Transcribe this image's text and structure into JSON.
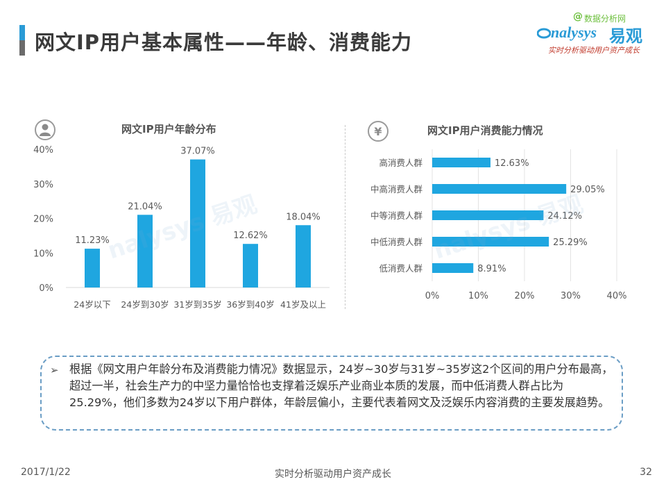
{
  "header": {
    "title": "网文IP用户基本属性——年龄、消费能力"
  },
  "logo": {
    "brand": "nalysys",
    "brand_cn": "易观",
    "slogan": "实时分析驱动用户资产成长",
    "corner_text": "数据分析网",
    "corner_at": "@"
  },
  "icons": {
    "age": "user-icon",
    "consumption": "yen-icon"
  },
  "colors": {
    "accent": "#2A9BD6",
    "bar": "#1FA6E0",
    "axis_text": "#595959"
  },
  "chart_data": [
    {
      "type": "bar",
      "title": "网文IP用户年龄分布",
      "categories": [
        "24岁以下",
        "24岁到30岁",
        "31岁到35岁",
        "36岁到40岁",
        "41岁及以上"
      ],
      "values": [
        11.23,
        21.04,
        37.07,
        12.62,
        18.04
      ],
      "value_labels": [
        "11.23%",
        "21.04%",
        "37.07%",
        "12.62%",
        "18.04%"
      ],
      "ylim": [
        0,
        40
      ],
      "yticks": [
        "0%",
        "10%",
        "20%",
        "30%",
        "40%"
      ],
      "grid": false
    },
    {
      "type": "bar",
      "orientation": "horizontal",
      "title": "网文IP用户消费能力情况",
      "categories": [
        "高消费人群",
        "中高消费人群",
        "中等消费人群",
        "中低消费人群",
        "低消费人群"
      ],
      "values": [
        12.63,
        29.05,
        24.12,
        25.29,
        8.91
      ],
      "value_labels": [
        "12.63%",
        "29.05%",
        "24.12%",
        "25.29%",
        "8.91%"
      ],
      "xlim": [
        0,
        40
      ],
      "xticks": [
        "0%",
        "10%",
        "20%",
        "30%",
        "40%"
      ],
      "grid": true
    }
  ],
  "summary": {
    "bullet": "➢",
    "text": "根据《网文用户年龄分布及消费能力情况》数据显示，24岁~30岁与31岁~35岁这2个区间的用户分布最高，超过一半，社会生产力的中坚力量恰恰也支撑着泛娱乐产业商业本质的发展，而中低消费人群占比为25.29%，他们多数为24岁以下用户群体，年龄层偏小，主要代表着网文及泛娱乐内容消费的主要发展趋势。"
  },
  "footer": {
    "date": "2017/1/22",
    "slogan": "实时分析驱动用户资产成长",
    "page": "32"
  }
}
